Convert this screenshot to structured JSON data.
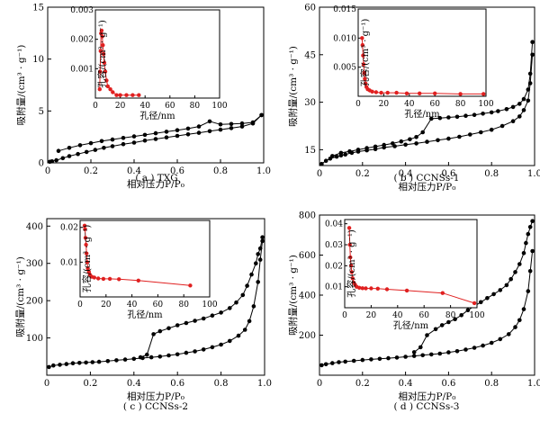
{
  "chart_data": [
    {
      "type": "line",
      "caption": "( a ) TXG",
      "xlabel": "相对压力P/P₀",
      "ylabel": "吸附量/(cm³ · g⁻¹)",
      "xlim": [
        0,
        1.0
      ],
      "ylim": [
        0,
        15
      ],
      "xticks": [
        "0",
        "0.2",
        "0.4",
        "0.6",
        "0.8",
        "1.0"
      ],
      "yticks": [
        "0",
        "5",
        "10",
        "15"
      ],
      "series": [
        {
          "x": [
            0.01,
            0.02,
            0.04,
            0.07,
            0.1,
            0.14,
            0.18,
            0.22,
            0.26,
            0.3,
            0.35,
            0.4,
            0.45,
            0.5,
            0.55,
            0.6,
            0.65,
            0.7,
            0.75,
            0.8,
            0.85,
            0.9,
            0.95,
            0.99
          ],
          "y": [
            0.1,
            0.15,
            0.25,
            0.45,
            0.65,
            0.85,
            1.05,
            1.25,
            1.45,
            1.6,
            1.8,
            1.95,
            2.15,
            2.3,
            2.45,
            2.6,
            2.75,
            2.9,
            3.05,
            3.2,
            3.35,
            3.5,
            3.8,
            4.6
          ],
          "color": "#000000"
        },
        {
          "x": [
            0.99,
            0.95,
            0.9,
            0.85,
            0.8,
            0.75,
            0.7,
            0.65,
            0.6,
            0.55,
            0.5,
            0.45,
            0.4,
            0.35,
            0.3,
            0.25,
            0.2,
            0.15,
            0.1,
            0.05
          ],
          "y": [
            4.6,
            3.9,
            3.8,
            3.75,
            3.7,
            4.0,
            3.5,
            3.3,
            3.15,
            3.0,
            2.85,
            2.7,
            2.55,
            2.4,
            2.25,
            2.1,
            1.9,
            1.7,
            1.45,
            1.15
          ],
          "color": "#000000"
        }
      ],
      "inset": {
        "xlabel": "孔径/nm",
        "ylabel": "孔容/(cm³ · g⁻¹)",
        "xlim": [
          0,
          100
        ],
        "ylim": [
          0,
          0.003
        ],
        "xticks": [
          "0",
          "20",
          "40",
          "60",
          "80",
          "100"
        ],
        "yticks": [
          "0.001",
          "0.002",
          "0.003"
        ],
        "series": [
          {
            "x": [
              3.5,
              3.8,
              4.2,
              4.6,
              5,
              5.5,
              6,
              6.6,
              7.2,
              8,
              9,
              10,
              12,
              14,
              17,
              20,
              25,
              30,
              35
            ],
            "y": [
              0.0003,
              0.0009,
              0.0016,
              0.0022,
              0.0023,
              0.0021,
              0.0018,
              0.0015,
              0.0012,
              0.0009,
              0.0006,
              0.0004,
              0.0003,
              0.0002,
              0.0001,
              0.0001,
              0.0001,
              0.0001,
              0.0001
            ],
            "color": "#e02020"
          }
        ]
      }
    },
    {
      "type": "line",
      "caption": "( b ) CCNSs-1",
      "xlabel": "相对压力P/P₀",
      "ylabel": "吸附量/(cm³ · g⁻¹)",
      "xlim": [
        0,
        1.0
      ],
      "ylim": [
        10,
        60
      ],
      "xticks": [
        "0",
        "0.2",
        "0.4",
        "0.6",
        "0.8",
        "1.0"
      ],
      "yticks": [
        "15",
        "30",
        "45",
        "60"
      ],
      "series": [
        {
          "x": [
            0.01,
            0.03,
            0.05,
            0.08,
            0.1,
            0.12,
            0.15,
            0.18,
            0.22,
            0.26,
            0.3,
            0.35,
            0.4,
            0.45,
            0.5,
            0.55,
            0.6,
            0.65,
            0.7,
            0.75,
            0.8,
            0.85,
            0.9,
            0.93,
            0.95,
            0.97,
            0.98,
            0.99
          ],
          "y": [
            10.5,
            11.5,
            12.2,
            12.8,
            13.2,
            13.5,
            14.0,
            14.4,
            14.8,
            15.2,
            15.7,
            16.1,
            16.6,
            17.0,
            17.5,
            18.0,
            18.5,
            19.1,
            19.8,
            20.5,
            21.3,
            22.5,
            24.0,
            25.5,
            27.5,
            30.5,
            36.0,
            45.0
          ],
          "color": "#000000"
        },
        {
          "x": [
            0.99,
            0.98,
            0.97,
            0.95,
            0.93,
            0.9,
            0.87,
            0.83,
            0.8,
            0.76,
            0.72,
            0.68,
            0.64,
            0.6,
            0.56,
            0.52,
            0.48,
            0.45,
            0.42,
            0.38,
            0.34,
            0.3,
            0.26,
            0.22,
            0.18,
            0.14,
            0.1,
            0.06
          ],
          "y": [
            49.0,
            39.0,
            34.0,
            31.0,
            29.5,
            28.5,
            27.8,
            27.2,
            26.8,
            26.4,
            26.0,
            25.7,
            25.4,
            25.2,
            25.0,
            24.8,
            20.5,
            19.0,
            18.3,
            17.6,
            17.0,
            16.5,
            16.0,
            15.5,
            15.0,
            14.5,
            14.0,
            13.0
          ],
          "color": "#000000"
        }
      ],
      "inset": {
        "xlabel": "孔径/nm",
        "ylabel": "孔容/(cm³ · g⁻¹)",
        "xlim": [
          0,
          100
        ],
        "ylim": [
          0,
          0.015
        ],
        "xticks": [
          "0",
          "20",
          "40",
          "60",
          "80",
          "100"
        ],
        "yticks": [
          "0.005",
          "0.010",
          "0.015"
        ],
        "series": [
          {
            "x": [
              3,
              3.4,
              3.8,
              4.2,
              4.7,
              5.2,
              5.8,
              6.5,
              7.5,
              9,
              11,
              14,
              18,
              23,
              30,
              38,
              48,
              60,
              80,
              98
            ],
            "y": [
              0.01,
              0.0088,
              0.007,
              0.0055,
              0.004,
              0.003,
              0.0022,
              0.0016,
              0.0012,
              0.001,
              0.0008,
              0.0007,
              0.0006,
              0.0006,
              0.0006,
              0.0005,
              0.0005,
              0.0005,
              0.0004,
              0.0004
            ],
            "color": "#e02020"
          }
        ]
      }
    },
    {
      "type": "line",
      "caption": "( c ) CCNSs-2",
      "xlabel": "相对压力P/P₀",
      "ylabel": "吸附量/(cm³ · g⁻¹)",
      "xlim": [
        0,
        1.0
      ],
      "ylim": [
        0,
        420
      ],
      "xticks": [
        "0",
        "0.2",
        "0.4",
        "0.6",
        "0.8",
        "1.0"
      ],
      "yticks": [
        "100",
        "200",
        "300",
        "400"
      ],
      "series": [
        {
          "x": [
            0.01,
            0.03,
            0.06,
            0.09,
            0.12,
            0.15,
            0.18,
            0.21,
            0.24,
            0.28,
            0.32,
            0.36,
            0.4,
            0.44,
            0.48,
            0.52,
            0.56,
            0.6,
            0.64,
            0.68,
            0.72,
            0.76,
            0.8,
            0.84,
            0.88,
            0.91,
            0.93,
            0.95,
            0.97,
            0.98,
            0.99
          ],
          "y": [
            22,
            26,
            28,
            30,
            32,
            33,
            34,
            35,
            36,
            38,
            40,
            42,
            44,
            46,
            48,
            50,
            53,
            56,
            60,
            64,
            69,
            75,
            82,
            92,
            106,
            122,
            145,
            185,
            250,
            310,
            360
          ],
          "color": "#000000"
        },
        {
          "x": [
            0.99,
            0.98,
            0.97,
            0.96,
            0.94,
            0.92,
            0.9,
            0.87,
            0.84,
            0.8,
            0.76,
            0.72,
            0.68,
            0.64,
            0.6,
            0.56,
            0.52,
            0.49,
            0.46,
            0.43
          ],
          "y": [
            370,
            340,
            325,
            300,
            270,
            240,
            215,
            195,
            180,
            168,
            160,
            152,
            146,
            140,
            134,
            126,
            118,
            110,
            55,
            48
          ],
          "color": "#000000"
        }
      ],
      "inset": {
        "xlabel": "孔径/nm",
        "ylabel": "孔容/(cm³ · g⁻¹)",
        "xlim": [
          0,
          100
        ],
        "ylim": [
          0,
          0.022
        ],
        "xticks": [
          "0",
          "20",
          "40",
          "60",
          "80",
          "100"
        ],
        "yticks": [
          "0.01",
          "0.02"
        ],
        "series": [
          {
            "x": [
              3.5,
              3.8,
              4.2,
              4.6,
              5,
              5.5,
              6,
              6.8,
              7.6,
              9,
              11,
              14,
              18,
              23,
              30,
              45,
              85
            ],
            "y": [
              0.0205,
              0.0195,
              0.017,
              0.015,
              0.0125,
              0.01,
              0.0082,
              0.0072,
              0.0064,
              0.0058,
              0.0056,
              0.0053,
              0.0052,
              0.0052,
              0.0051,
              0.0047,
              0.0033
            ],
            "color": "#e02020"
          }
        ]
      }
    },
    {
      "type": "line",
      "caption": "( d ) CCNSs-3",
      "xlabel": "相对压力P/P₀",
      "ylabel": "吸附量/(cm³ · g⁻¹)",
      "xlim": [
        0,
        1.0
      ],
      "ylim": [
        0,
        800
      ],
      "xticks": [
        "0",
        "0.2",
        "0.4",
        "0.6",
        "0.8",
        "1.0"
      ],
      "yticks": [
        "200",
        "400",
        "600",
        "800"
      ],
      "series": [
        {
          "x": [
            0.01,
            0.03,
            0.06,
            0.09,
            0.12,
            0.16,
            0.2,
            0.24,
            0.28,
            0.32,
            0.36,
            0.4,
            0.44,
            0.48,
            0.52,
            0.56,
            0.6,
            0.64,
            0.68,
            0.72,
            0.76,
            0.8,
            0.84,
            0.88,
            0.91,
            0.93,
            0.95,
            0.97,
            0.98,
            0.99
          ],
          "y": [
            50,
            55,
            60,
            65,
            68,
            72,
            76,
            79,
            82,
            85,
            88,
            92,
            96,
            100,
            104,
            108,
            114,
            120,
            128,
            137,
            148,
            162,
            180,
            205,
            240,
            275,
            330,
            420,
            520,
            620
          ],
          "color": "#000000"
        },
        {
          "x": [
            0.99,
            0.98,
            0.97,
            0.96,
            0.95,
            0.93,
            0.91,
            0.89,
            0.87,
            0.84,
            0.81,
            0.78,
            0.75,
            0.72,
            0.69,
            0.66,
            0.63,
            0.6,
            0.57,
            0.54,
            0.5,
            0.47,
            0.44
          ],
          "y": [
            770,
            740,
            705,
            660,
            610,
            555,
            515,
            480,
            450,
            425,
            405,
            385,
            365,
            345,
            325,
            300,
            280,
            265,
            250,
            230,
            200,
            140,
            115
          ],
          "color": "#000000"
        }
      ],
      "inset": {
        "xlabel": "孔径/nm",
        "ylabel": "孔容/(cm³ · g⁻¹)",
        "xlim": [
          0,
          100
        ],
        "ylim": [
          0,
          0.042
        ],
        "xticks": [
          "0",
          "20",
          "40",
          "60",
          "80",
          "100"
        ],
        "yticks": [
          "0.01",
          "0.02",
          "0.03",
          "0.04"
        ],
        "series": [
          {
            "x": [
              3.5,
              3.9,
              4.3,
              4.8,
              5.3,
              6,
              6.8,
              7.8,
              9,
              11,
              13.5,
              16,
              20,
              25,
              32,
              47,
              74,
              98
            ],
            "y": [
              0.038,
              0.03,
              0.024,
              0.02,
              0.017,
              0.014,
              0.012,
              0.011,
              0.01,
              0.0095,
              0.0093,
              0.0092,
              0.0092,
              0.0091,
              0.0088,
              0.0082,
              0.007,
              0.0022
            ],
            "color": "#e02020"
          }
        ]
      }
    }
  ]
}
